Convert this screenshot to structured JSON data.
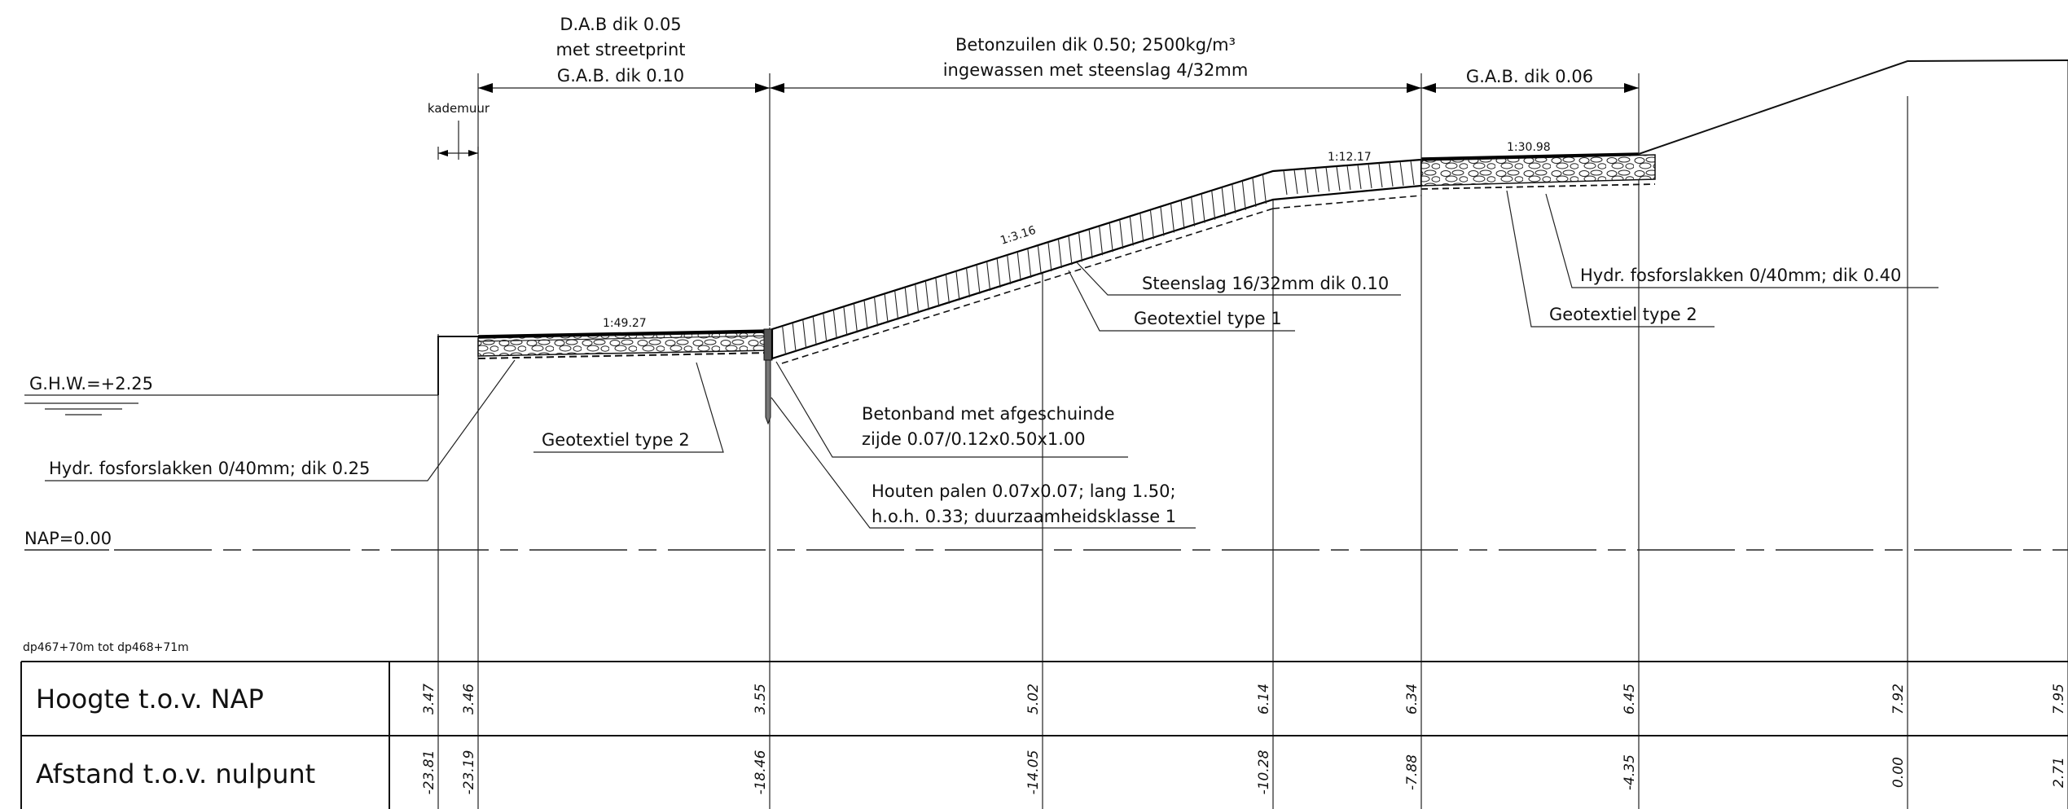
{
  "dims_top": {
    "dab_line1": "D.A.B dik 0.05",
    "dab_line2": "met streetprint",
    "dab_line3": "G.A.B. dik 0.10",
    "beton_line1": "Betonzuilen dik 0.50; 2500kg/m³",
    "beton_line2": "ingewassen met steenslag 4/32mm",
    "gab_right": "G.A.B. dik 0.06",
    "kademuur": "kademuur"
  },
  "slopes": {
    "s1": "1:49.27",
    "s2": "1:3.16",
    "s3": "1:12.17",
    "s4": "1:30.98"
  },
  "callouts": {
    "steenslag": "Steenslag 16/32mm dik 0.10",
    "geotextiel1": "Geotextiel type 1",
    "hydr_right": "Hydr. fosforslakken 0/40mm; dik 0.40",
    "geotextiel2_right": "Geotextiel type 2",
    "geotextiel2_left": "Geotextiel type 2",
    "hydr_left": "Hydr. fosforslakken 0/40mm; dik 0.25",
    "betonband_line1": "Betonband met afgeschuinde",
    "betonband_line2": "zijde 0.07/0.12x0.50x1.00",
    "palen_line1": "Houten palen 0.07x0.07; lang 1.50;",
    "palen_line2": "h.o.h. 0.33; duurzaamheidsklasse 1"
  },
  "levels": {
    "ghw": "G.H.W.=+2.25",
    "nap": "NAP=0.00"
  },
  "section_range": "dp467+70m tot dp468+71m",
  "table": {
    "row1_label": "Hoogte t.o.v. NAP",
    "row2_label": "Afstand t.o.v. nulpunt",
    "hoogte": [
      "3.47",
      "3.46",
      "3.55",
      "5.02",
      "6.14",
      "6.34",
      "6.45",
      "7.92",
      "7.95"
    ],
    "afstand": [
      "-23.81",
      "-23.19",
      "-18.46",
      "-14.05",
      "-10.28",
      "-7.88",
      "-4.35",
      "0.00",
      "2.71"
    ]
  }
}
